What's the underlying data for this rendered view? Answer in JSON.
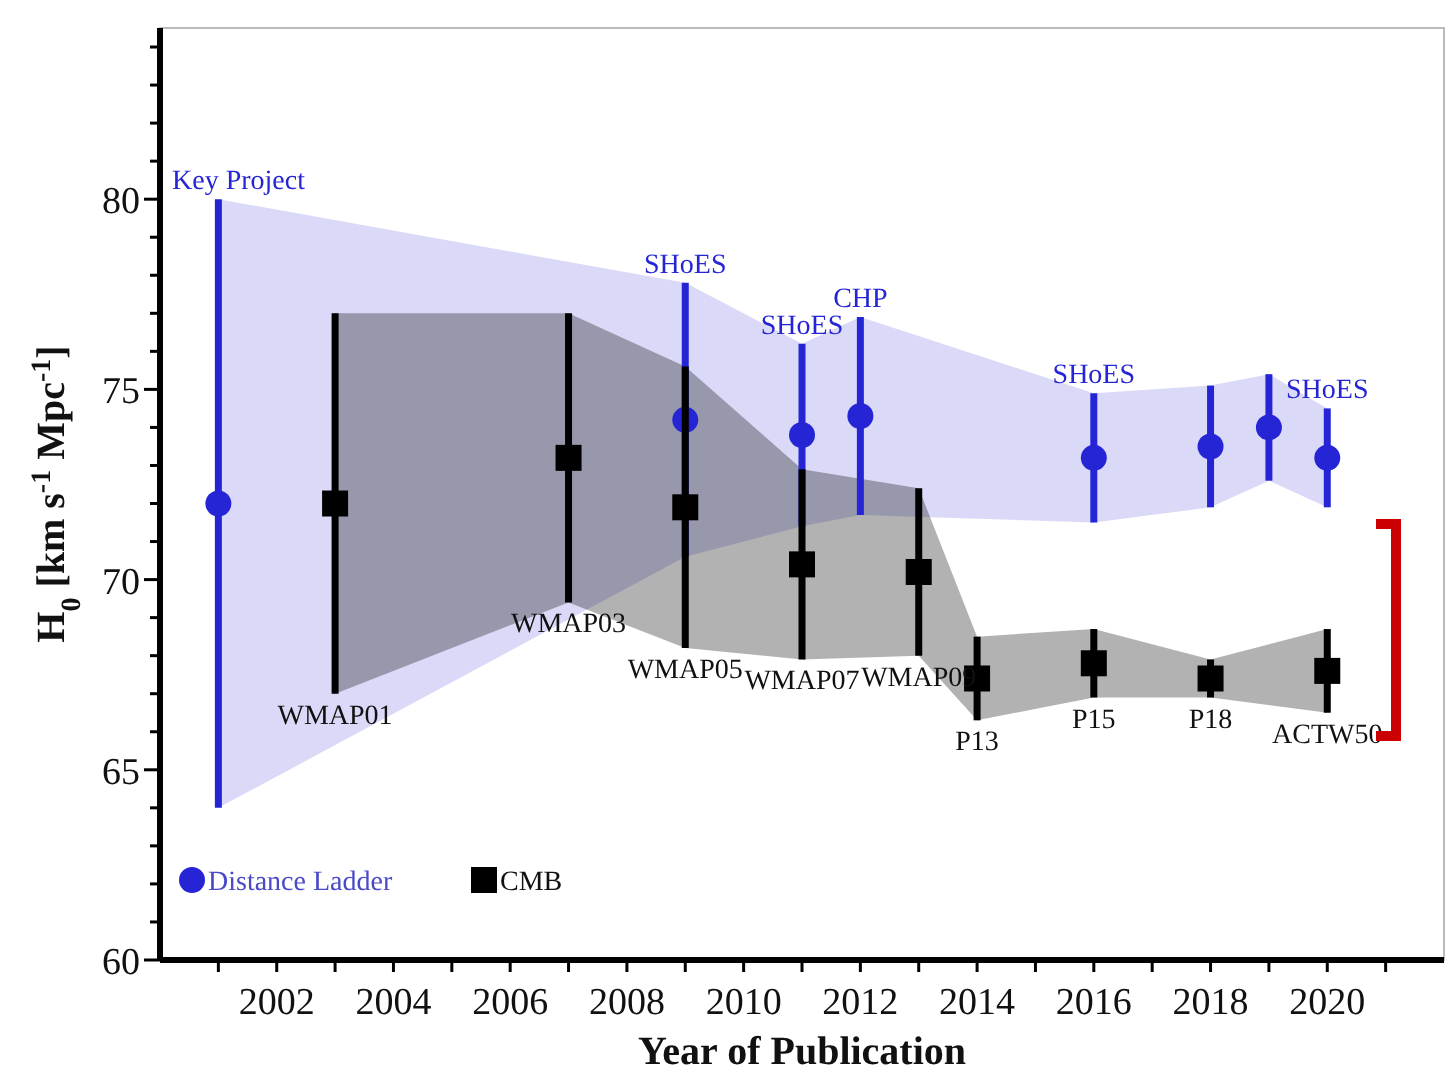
{
  "chart_data": {
    "type": "scatter",
    "xlabel": "Year of Publication",
    "ylabel": "H$_{0}$ [km s$^{-1}$ Mpc$^{-1}$]",
    "xlim": [
      2000,
      2022
    ],
    "ylim": [
      60,
      84.5
    ],
    "xticks": [
      {
        "value": 2001,
        "label": null
      },
      2002,
      {
        "value": 2003,
        "label": null
      },
      2004,
      {
        "value": 2005,
        "label": null
      },
      2006,
      {
        "value": 2007,
        "label": null
      },
      2008,
      {
        "value": 2009,
        "label": null
      },
      2010,
      {
        "value": 2011,
        "label": null
      },
      2012,
      {
        "value": 2013,
        "label": null
      },
      2014,
      {
        "value": 2015,
        "label": null
      },
      2016,
      {
        "value": 2017,
        "label": null
      },
      2018,
      {
        "value": 2019,
        "label": null
      },
      2020,
      {
        "value": 2021,
        "label": null
      }
    ],
    "yticks": [
      60,
      {
        "value": 61,
        "label": null
      },
      {
        "value": 62,
        "label": null
      },
      {
        "value": 63,
        "label": null
      },
      {
        "value": 64,
        "label": null
      },
      65,
      {
        "value": 66,
        "label": null
      },
      {
        "value": 67,
        "label": null
      },
      {
        "value": 68,
        "label": null
      },
      {
        "value": 69,
        "label": null
      },
      70,
      {
        "value": 71,
        "label": null
      },
      {
        "value": 72,
        "label": null
      },
      {
        "value": 73,
        "label": null
      },
      {
        "value": 74,
        "label": null
      },
      75,
      {
        "value": 76,
        "label": null
      },
      {
        "value": 77,
        "label": null
      },
      {
        "value": 78,
        "label": null
      },
      {
        "value": 79,
        "label": null
      },
      80,
      {
        "value": 81,
        "label": null
      },
      {
        "value": 82,
        "label": null
      },
      {
        "value": 83,
        "label": null
      },
      {
        "value": 84,
        "label": null
      }
    ],
    "grid": false,
    "legend": "bottom left",
    "series": [
      {
        "name": "Distance Ladder",
        "color": "#2525d6",
        "marker": "circle",
        "x": [
          2001,
          2009,
          2011,
          2012,
          2016,
          2018,
          2019,
          2020
        ],
        "values": [
          72,
          74.2,
          73.8,
          74.3,
          73.2,
          73.5,
          74.0,
          73.2
        ],
        "errors": [
          8,
          3.6,
          2.4,
          2.6,
          1.7,
          1.6,
          1.4,
          1.3
        ],
        "lower": [
          64,
          70.6,
          71.4,
          71.7,
          71.5,
          71.9,
          72.6,
          71.9
        ],
        "upper": [
          80,
          77.8,
          76.2,
          76.9,
          74.9,
          75.1,
          75.4,
          74.5
        ]
      },
      {
        "name": "CMB",
        "color": "#000000",
        "marker": "square",
        "x": [
          2003,
          2007,
          2009,
          2011,
          2013,
          2014,
          2016,
          2018,
          2020
        ],
        "values": [
          72,
          73.2,
          71.9,
          70.4,
          70.2,
          67.4,
          67.8,
          67.4,
          67.6
        ],
        "errors": [
          5,
          3.8,
          3.7,
          2.5,
          2.2,
          1.1,
          0.9,
          0.5,
          1.1
        ],
        "lower": [
          67,
          69.4,
          68.2,
          67.9,
          68.0,
          66.3,
          66.9,
          66.9,
          66.5
        ],
        "upper": [
          77,
          77,
          75.6,
          72.9,
          72.4,
          68.5,
          68.7,
          67.9,
          68.7
        ]
      }
    ],
    "annotations": [
      {
        "text": "Key Project",
        "x": 2001,
        "y": 80
      },
      {
        "text": "SHoES",
        "x": 2009,
        "y": 77.8
      },
      {
        "text": "SHoES",
        "x": 2011,
        "y": 76.2
      },
      {
        "text": "CHP",
        "x": 2012,
        "y": 76.9
      },
      {
        "text": "SHoES",
        "x": 2016,
        "y": 74.9
      },
      {
        "text": "SHoES",
        "x": 2020,
        "y": 74.5
      },
      {
        "text": "WMAP01",
        "x": 2003,
        "y": 67
      },
      {
        "text": "WMAP03",
        "x": 2007,
        "y": 69.4
      },
      {
        "text": "WMAP05",
        "x": 2009,
        "y": 68.2
      },
      {
        "text": "WMAP07",
        "x": 2011,
        "y": 67.9
      },
      {
        "text": "WMAP09",
        "x": 2013,
        "y": 68.0
      },
      {
        "text": "P13",
        "x": 2014,
        "y": 66.3
      },
      {
        "text": "P15",
        "x": 2016,
        "y": 66.9
      },
      {
        "text": "P18",
        "x": 2018,
        "y": 66.9
      },
      {
        "text": "ACTW50",
        "x": 2020,
        "y": 66.5
      }
    ]
  }
}
